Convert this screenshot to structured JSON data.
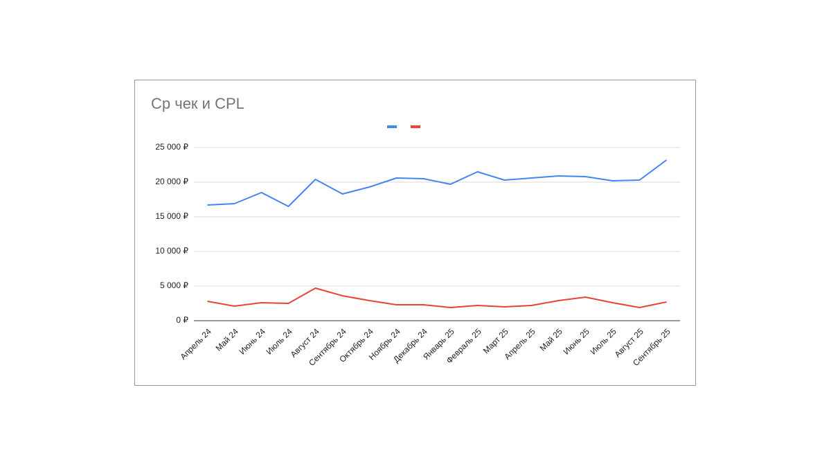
{
  "chart_data": {
    "type": "line",
    "title": "Ср чек и CPL",
    "categories": [
      "Апрель 24",
      "Май 24",
      "Июнь 24",
      "Июль 24",
      "Август 24",
      "Сентябрь 24",
      "Октябрь 24",
      "Ноябрь 24",
      "Декабрь 24",
      "Январь 25",
      "Февраль 25",
      "Март 25",
      "Апрель 25",
      "Май 25",
      "Июнь 25",
      "Июль 25",
      "Август 25",
      "Сентябрь 25"
    ],
    "series": [
      {
        "color": "#4285f4",
        "values": [
          16700,
          16900,
          18500,
          16500,
          20400,
          18300,
          19300,
          20600,
          20500,
          19700,
          21500,
          20300,
          20600,
          20900,
          20800,
          20200,
          20300,
          23200
        ]
      },
      {
        "color": "#ea4335",
        "values": [
          2800,
          2100,
          2600,
          2500,
          4700,
          3600,
          2900,
          2300,
          2300,
          1900,
          2200,
          2000,
          2200,
          2900,
          3400,
          2600,
          1900,
          2700
        ]
      }
    ],
    "ylim": [
      0,
      25000
    ],
    "yticks": [
      {
        "value": 0,
        "label": "0 ₽"
      },
      {
        "value": 5000,
        "label": "5 000 ₽"
      },
      {
        "value": 10000,
        "label": "10 000 ₽"
      },
      {
        "value": 15000,
        "label": "15 000 ₽"
      },
      {
        "value": 20000,
        "label": "20 000 ₽"
      },
      {
        "value": 25000,
        "label": "25 000 ₽"
      }
    ],
    "grid": true
  }
}
